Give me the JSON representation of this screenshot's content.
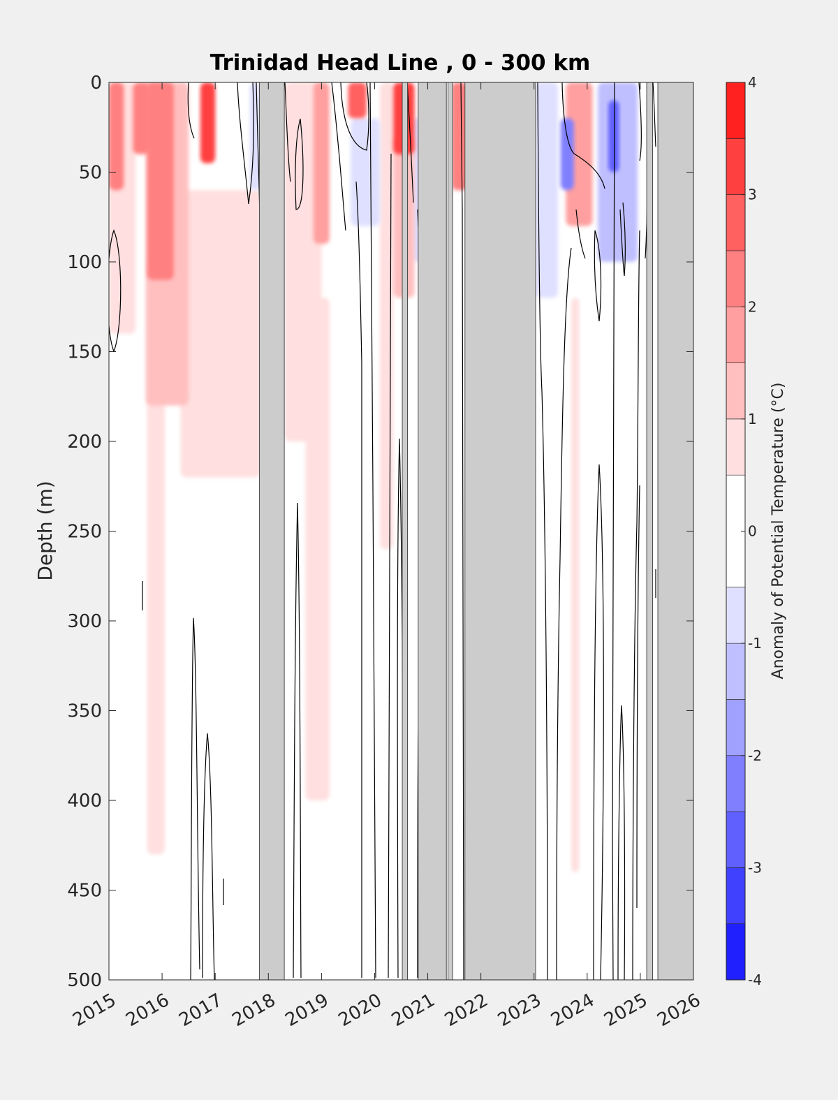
{
  "chart_data": {
    "type": "heatmap",
    "title": "Trinidad Head Line , 0 - 300 km",
    "ylabel": "Depth (m)",
    "colorbar_label": "Anomaly of Potential Temperature (°C)",
    "x_ticks": [
      "2015",
      "2016",
      "2017",
      "2018",
      "2019",
      "2020",
      "2021",
      "2022",
      "2023",
      "2024",
      "2025",
      "2026"
    ],
    "xlim": [
      2015,
      2026
    ],
    "y_ticks": [
      "0",
      "50",
      "100",
      "150",
      "200",
      "250",
      "300",
      "350",
      "400",
      "450",
      "500"
    ],
    "ylim": [
      0,
      500
    ],
    "y_reversed": true,
    "colorbar": {
      "ticks": [
        "4",
        "3",
        "2",
        "1",
        "0",
        "-1",
        "-2",
        "-3",
        "-4"
      ],
      "range": [
        -4,
        4
      ],
      "levels": [
        -4,
        -3.5,
        -3,
        -2.5,
        -2,
        -1.5,
        -1,
        -0.5,
        0.5,
        1,
        1.5,
        2,
        2.5,
        3,
        3.5,
        4
      ],
      "colors": [
        "#0000ff",
        "#2020ff",
        "#4040ff",
        "#6060ff",
        "#8080ff",
        "#a0a0ff",
        "#bfbfff",
        "#dfdfff",
        "#ffffff",
        "#ffdfdf",
        "#ffbfbf",
        "#ff9f9f",
        "#ff8080",
        "#ff6060",
        "#ff4040",
        "#ff2020",
        "#ff0000"
      ]
    },
    "no_data_color": "#cccccc",
    "no_data_periods": [
      [
        2017.83,
        2018.3
      ],
      [
        2020.52,
        2020.62
      ],
      [
        2020.82,
        2021.35
      ],
      [
        2021.38,
        2021.47
      ],
      [
        2021.7,
        2023.03
      ],
      [
        2025.12,
        2025.23
      ],
      [
        2025.33,
        2026.0
      ]
    ],
    "anomaly_features": [
      {
        "x": [
          2015.0,
          2015.28
        ],
        "depth": [
          0,
          60
        ],
        "value": 2.2
      },
      {
        "x": [
          2015.0,
          2015.5
        ],
        "depth": [
          0,
          140
        ],
        "value": 0.8
      },
      {
        "x": [
          2015.45,
          2015.78
        ],
        "depth": [
          0,
          40
        ],
        "value": 2.4
      },
      {
        "x": [
          2015.72,
          2016.22
        ],
        "depth": [
          0,
          110
        ],
        "value": 2.2
      },
      {
        "x": [
          2015.7,
          2016.5
        ],
        "depth": [
          0,
          180
        ],
        "value": 1.3
      },
      {
        "x": [
          2015.72,
          2016.05
        ],
        "depth": [
          100,
          430
        ],
        "value": 0.7
      },
      {
        "x": [
          2016.35,
          2017.85
        ],
        "depth": [
          60,
          220
        ],
        "value": 0.7
      },
      {
        "x": [
          2016.72,
          2017.0
        ],
        "depth": [
          0,
          45
        ],
        "value": 3.0
      },
      {
        "x": [
          2017.65,
          2017.85
        ],
        "depth": [
          0,
          60
        ],
        "value": -0.7
      },
      {
        "x": [
          2018.3,
          2019.0
        ],
        "depth": [
          0,
          200
        ],
        "value": 0.9
      },
      {
        "x": [
          2018.7,
          2019.15
        ],
        "depth": [
          120,
          400
        ],
        "value": 0.7
      },
      {
        "x": [
          2018.85,
          2019.15
        ],
        "depth": [
          0,
          90
        ],
        "value": 1.8
      },
      {
        "x": [
          2019.5,
          2019.85
        ],
        "depth": [
          0,
          20
        ],
        "value": 2.8
      },
      {
        "x": [
          2019.55,
          2020.1
        ],
        "depth": [
          20,
          80
        ],
        "value": -0.9
      },
      {
        "x": [
          2020.1,
          2020.35
        ],
        "depth": [
          0,
          260
        ],
        "value": 0.8
      },
      {
        "x": [
          2020.35,
          2020.75
        ],
        "depth": [
          0,
          40
        ],
        "value": 3.2
      },
      {
        "x": [
          2020.35,
          2020.75
        ],
        "depth": [
          30,
          120
        ],
        "value": 1.4
      },
      {
        "x": [
          2020.7,
          2020.95
        ],
        "depth": [
          20,
          100
        ],
        "value": -0.8
      },
      {
        "x": [
          2021.45,
          2021.75
        ],
        "depth": [
          0,
          60
        ],
        "value": 2.0
      },
      {
        "x": [
          2023.03,
          2023.45
        ],
        "depth": [
          0,
          120
        ],
        "value": -1.0
      },
      {
        "x": [
          2023.5,
          2023.75
        ],
        "depth": [
          20,
          60
        ],
        "value": -2.4
      },
      {
        "x": [
          2023.6,
          2024.1
        ],
        "depth": [
          0,
          80
        ],
        "value": 1.8
      },
      {
        "x": [
          2023.7,
          2023.85
        ],
        "depth": [
          120,
          440
        ],
        "value": 0.7
      },
      {
        "x": [
          2024.2,
          2024.95
        ],
        "depth": [
          0,
          100
        ],
        "value": -1.3
      },
      {
        "x": [
          2024.4,
          2024.6
        ],
        "depth": [
          10,
          50
        ],
        "value": -3.0
      }
    ]
  }
}
